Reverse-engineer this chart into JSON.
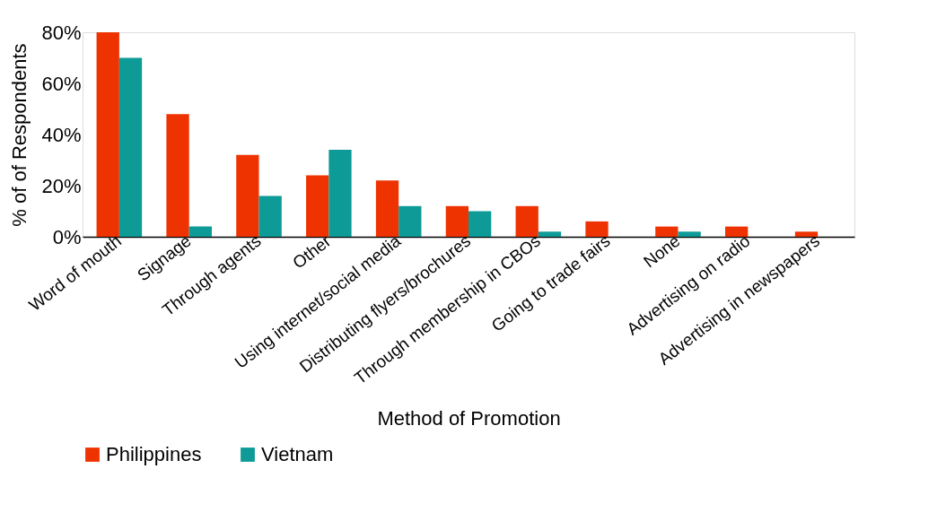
{
  "chart_data": {
    "type": "bar",
    "categories": [
      "Word of mouth",
      "Signage",
      "Through agents",
      "Other",
      "Using internet/social media",
      "Distributing flyers/brochures",
      "Through membership in CBOs",
      "Going to trade fairs",
      "None",
      "Advertising on radio",
      "Advertising in newspapers"
    ],
    "series": [
      {
        "name": "Philippines",
        "color": "#ee3300",
        "values": [
          80,
          48,
          32,
          24,
          22,
          12,
          12,
          6,
          4,
          4,
          2
        ]
      },
      {
        "name": "Vietnam",
        "color": "#0e9a97",
        "values": [
          70,
          4,
          16,
          34,
          12,
          10,
          2,
          0,
          2,
          0,
          0
        ]
      }
    ],
    "xlabel": "Method of Promotion",
    "ylabel": "% of of Respondents",
    "ylim": [
      0,
      80
    ],
    "yticks": [
      {
        "value": 0,
        "label": "0%"
      },
      {
        "value": 20,
        "label": "20%"
      },
      {
        "value": 40,
        "label": "40%"
      },
      {
        "value": 60,
        "label": "60%"
      },
      {
        "value": 80,
        "label": "80%"
      }
    ],
    "grid": false,
    "legend": "bottom"
  }
}
